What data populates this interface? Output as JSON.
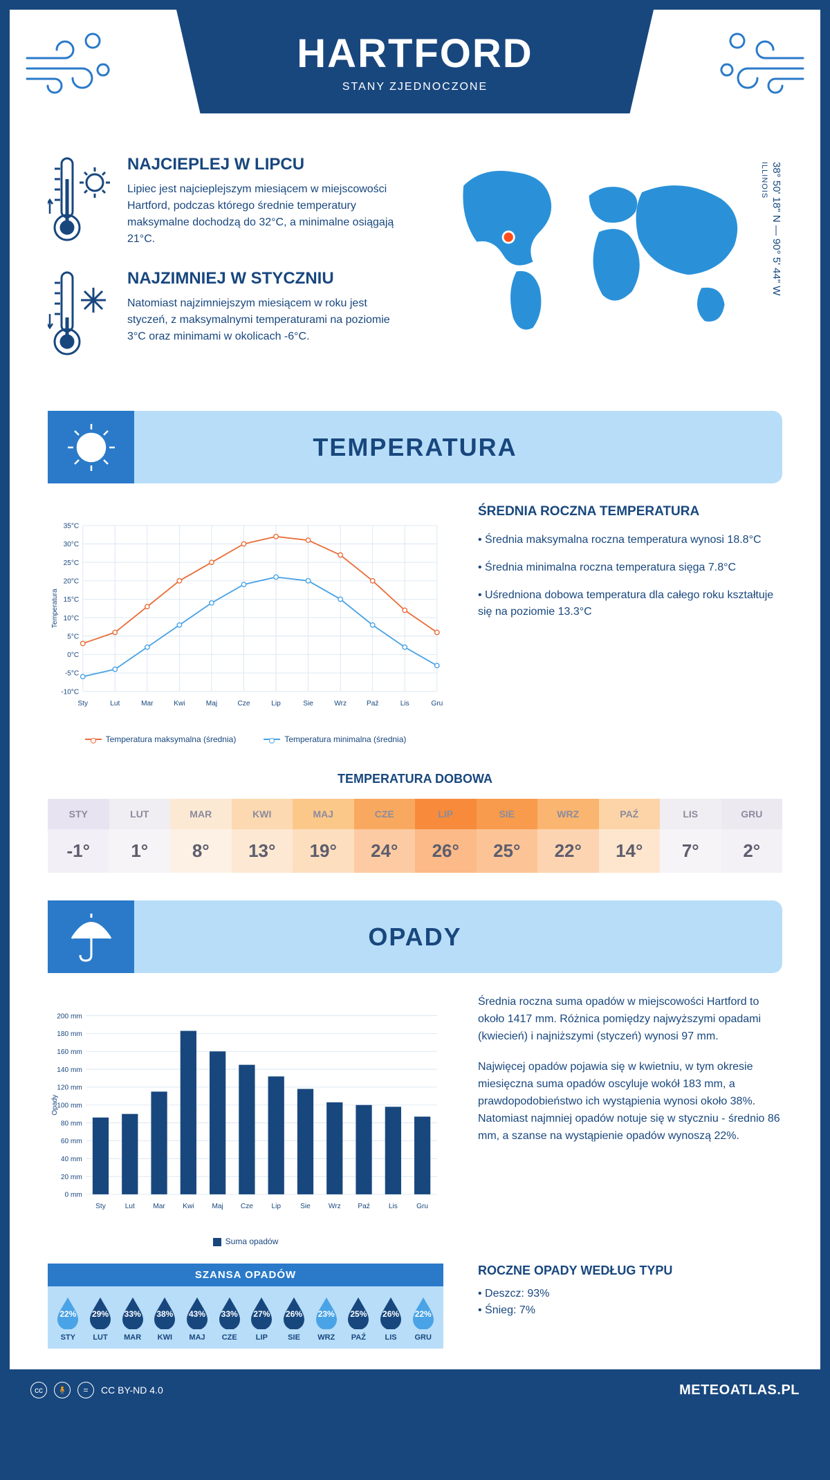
{
  "header": {
    "title": "HARTFORD",
    "subtitle": "STANY ZJEDNOCZONE"
  },
  "coords": {
    "text": "38° 50' 18\" N — 90° 5' 44\" W",
    "state": "ILLINOIS"
  },
  "intro": {
    "hot": {
      "title": "NAJCIEPLEJ W LIPCU",
      "text": "Lipiec jest najcieplejszym miesiącem w miejscowości Hartford, podczas którego średnie temperatury maksymalne dochodzą do 32°C, a minimalne osiągają 21°C."
    },
    "cold": {
      "title": "NAJZIMNIEJ W STYCZNIU",
      "text": "Natomiast najzimniejszym miesiącem w roku jest styczeń, z maksymalnymi temperaturami na poziomie 3°C oraz minimami w okolicach -6°C."
    }
  },
  "temperature": {
    "section_title": "TEMPERATURA",
    "chart": {
      "months": [
        "Sty",
        "Lut",
        "Mar",
        "Kwi",
        "Maj",
        "Cze",
        "Lip",
        "Sie",
        "Wrz",
        "Paź",
        "Lis",
        "Gru"
      ],
      "series_max": {
        "label": "Temperatura maksymalna (średnia)",
        "color": "#e96f3a",
        "values": [
          3,
          6,
          13,
          20,
          25,
          30,
          32,
          31,
          27,
          20,
          12,
          6
        ]
      },
      "series_min": {
        "label": "Temperatura minimalna (średnia)",
        "color": "#4aa3e6",
        "values": [
          -6,
          -4,
          2,
          8,
          14,
          19,
          21,
          20,
          15,
          8,
          2,
          -3
        ]
      },
      "y_axis_label": "Temperatura",
      "y_ticks": [
        -10,
        -5,
        0,
        5,
        10,
        15,
        20,
        25,
        30,
        35
      ],
      "y_tick_labels": [
        "-10°C",
        "-5°C",
        "0°C",
        "5°C",
        "10°C",
        "15°C",
        "20°C",
        "25°C",
        "30°C",
        "35°C"
      ],
      "ylim": [
        -10,
        35
      ],
      "grid_color": "#d9e6f2",
      "label_fontsize": 11
    },
    "info": {
      "heading": "ŚREDNIA ROCZNA TEMPERATURA",
      "bullets": [
        "• Średnia maksymalna roczna temperatura wynosi 18.8°C",
        "• Średnia minimalna roczna temperatura sięga 7.8°C",
        "• Uśredniona dobowa temperatura dla całego roku kształtuje się na poziomie 13.3°C"
      ]
    },
    "daily": {
      "heading": "TEMPERATURA DOBOWA",
      "months": [
        "STY",
        "LUT",
        "MAR",
        "KWI",
        "MAJ",
        "CZE",
        "LIP",
        "SIE",
        "WRZ",
        "PAŹ",
        "LIS",
        "GRU"
      ],
      "values": [
        "-1°",
        "1°",
        "8°",
        "13°",
        "19°",
        "24°",
        "26°",
        "25°",
        "22°",
        "14°",
        "7°",
        "2°"
      ],
      "head_colors": [
        "#e8e3f0",
        "#f0eef2",
        "#fbe9d3",
        "#fcd9b0",
        "#fcc88a",
        "#f9a95f",
        "#f78b3b",
        "#f89b4d",
        "#fab570",
        "#fcd4a7",
        "#f0eef2",
        "#ece9f1"
      ],
      "val_colors": [
        "#f2eff6",
        "#f6f4f7",
        "#fdf1e5",
        "#fde8d3",
        "#fddfbf",
        "#fccba3",
        "#fbba88",
        "#fcc496",
        "#fdd4b1",
        "#fde6cd",
        "#f6f4f7",
        "#f3f1f6"
      ],
      "head_text": "#8b8b9e",
      "val_text": "#5d5d6d"
    }
  },
  "precip": {
    "section_title": "OPADY",
    "chart": {
      "months": [
        "Sty",
        "Lut",
        "Mar",
        "Kwi",
        "Maj",
        "Cze",
        "Lip",
        "Sie",
        "Wrz",
        "Paź",
        "Lis",
        "Gru"
      ],
      "values": [
        86,
        90,
        115,
        183,
        160,
        145,
        132,
        118,
        103,
        100,
        98,
        87
      ],
      "color": "#18477e",
      "y_ticks": [
        0,
        20,
        40,
        60,
        80,
        100,
        120,
        140,
        160,
        180,
        200
      ],
      "y_tick_labels": [
        "0 mm",
        "20 mm",
        "40 mm",
        "60 mm",
        "80 mm",
        "100 mm",
        "120 mm",
        "140 mm",
        "160 mm",
        "180 mm",
        "200 mm"
      ],
      "ylim": [
        0,
        200
      ],
      "y_axis_label": "Opady",
      "legend": "Suma opadów",
      "grid_color": "#d9e6f2",
      "bar_width": 0.55
    },
    "info": {
      "p1": "Średnia roczna suma opadów w miejscowości Hartford to około 1417 mm. Różnica pomiędzy najwyższymi opadami (kwiecień) i najniższymi (styczeń) wynosi 97 mm.",
      "p2": "Najwięcej opadów pojawia się w kwietniu, w tym okresie miesięczna suma opadów oscyluje wokół 183 mm, a prawdopodobieństwo ich wystąpienia wynosi około 38%. Natomiast najmniej opadów notuje się w styczniu - średnio 86 mm, a szanse na wystąpienie opadów wynoszą 22%."
    },
    "chance": {
      "heading": "SZANSA OPADÓW",
      "months": [
        "STY",
        "LUT",
        "MAR",
        "KWI",
        "MAJ",
        "CZE",
        "LIP",
        "SIE",
        "WRZ",
        "PAŹ",
        "LIS",
        "GRU"
      ],
      "pcts": [
        "22%",
        "29%",
        "33%",
        "38%",
        "43%",
        "33%",
        "27%",
        "26%",
        "23%",
        "25%",
        "26%",
        "22%"
      ],
      "drop_dark": "#18477e",
      "drop_light": "#4aa3e6",
      "light_indices": [
        0,
        8,
        11
      ]
    },
    "by_type": {
      "heading": "ROCZNE OPADY WEDŁUG TYPU",
      "rain": "• Deszcz: 93%",
      "snow": "• Śnieg: 7%"
    }
  },
  "footer": {
    "license": "CC BY-ND 4.0",
    "brand": "METEOATLAS.PL"
  },
  "colors": {
    "primary": "#18477e",
    "light_blue": "#b8ddf8",
    "mid_blue": "#2a7ac9",
    "map_fill": "#2a91d9",
    "marker": "#ff4d1a"
  }
}
